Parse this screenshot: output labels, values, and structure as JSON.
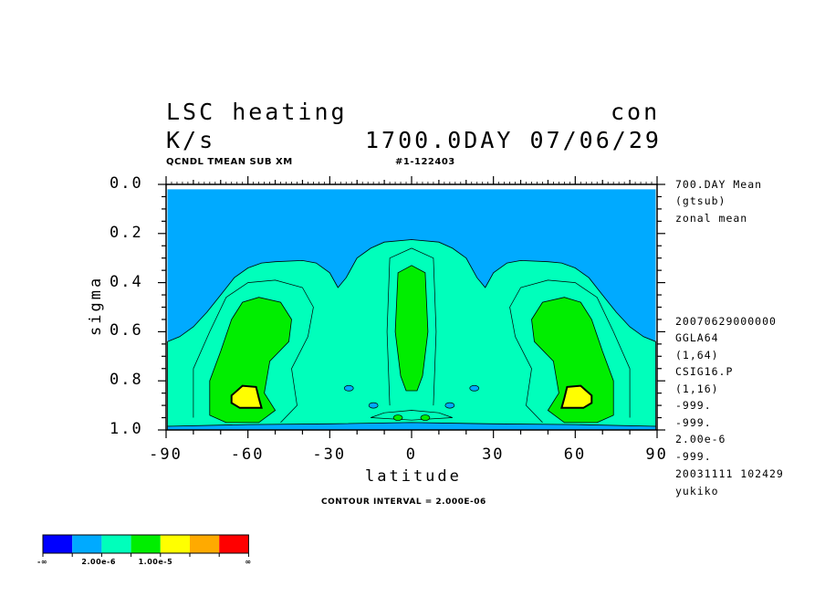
{
  "title": {
    "left_line1": "LSC heating",
    "right_line1": "con",
    "left_line2": "K/s",
    "right_line2": "1700.0DAY 07/06/29"
  },
  "header_small": {
    "left": "QCNDL TMEAN SUB XM",
    "right": "#1-122403"
  },
  "side_top": [
    "700.DAY Mean",
    "(gtsub)",
    "zonal mean"
  ],
  "side_bottom": [
    "20070629000000",
    "GGLA64",
    "(1,64)",
    "CSIG16.P",
    "(1,16)",
    "-999.",
    "-999.",
    "2.00e-6",
    "-999.",
    "20031111 102429",
    "yukiko"
  ],
  "footer": {
    "contour_interval": "CONTOUR INTERVAL = 2.000E-06"
  },
  "legend": {
    "colors": [
      "#0000ff",
      "#00aaff",
      "#00ffbb",
      "#00ee00",
      "#ffff00",
      "#ffaa00",
      "#ff0000"
    ],
    "labels": [
      "-∞",
      "2.00e-6",
      "1.00e-5",
      "∞"
    ]
  },
  "chart_data": {
    "type": "heatmap",
    "title": "LSC heating",
    "units": "K/s",
    "xlabel": "latitude",
    "ylabel": "sigma",
    "xlim": [
      -90,
      90
    ],
    "ylim": [
      1.0,
      0.0
    ],
    "x_ticks": [
      "-90",
      "-60",
      "-30",
      "0",
      "30",
      "60",
      "90"
    ],
    "y_ticks": [
      "0.0",
      "0.2",
      "0.4",
      "0.6",
      "0.8",
      "1.0"
    ],
    "contour_interval": 2e-06,
    "levels": [
      0,
      2e-06,
      4e-06,
      6e-06,
      8e-06,
      1e-05
    ],
    "regions": [
      {
        "name": "above 2.00e-6",
        "level": 2e-06,
        "fill": "#00ffbb",
        "boundary": [
          [
            -89.5,
            0.64
          ],
          [
            -85,
            0.62
          ],
          [
            -80,
            0.58
          ],
          [
            -75,
            0.52
          ],
          [
            -70,
            0.45
          ],
          [
            -65,
            0.38
          ],
          [
            -60,
            0.34
          ],
          [
            -55,
            0.32
          ],
          [
            -50,
            0.315
          ],
          [
            -40,
            0.31
          ],
          [
            -35,
            0.32
          ],
          [
            -30,
            0.36
          ],
          [
            -27,
            0.42
          ],
          [
            -24,
            0.38
          ],
          [
            -20,
            0.3
          ],
          [
            -15,
            0.26
          ],
          [
            -10,
            0.235
          ],
          [
            0,
            0.225
          ],
          [
            10,
            0.235
          ],
          [
            15,
            0.26
          ],
          [
            20,
            0.3
          ],
          [
            24,
            0.38
          ],
          [
            27,
            0.42
          ],
          [
            30,
            0.36
          ],
          [
            35,
            0.32
          ],
          [
            40,
            0.31
          ],
          [
            50,
            0.315
          ],
          [
            55,
            0.32
          ],
          [
            60,
            0.34
          ],
          [
            65,
            0.38
          ],
          [
            70,
            0.45
          ],
          [
            75,
            0.52
          ],
          [
            80,
            0.58
          ],
          [
            85,
            0.62
          ],
          [
            89.5,
            0.64
          ],
          [
            89.5,
            0.985
          ],
          [
            -89.5,
            0.985
          ]
        ]
      },
      {
        "name": "left core 1.00e-5",
        "level": 1e-05,
        "fill": "#00ee00",
        "boundary": [
          [
            -74,
            0.94
          ],
          [
            -74,
            0.8
          ],
          [
            -70,
            0.68
          ],
          [
            -66,
            0.55
          ],
          [
            -62,
            0.48
          ],
          [
            -56,
            0.46
          ],
          [
            -48,
            0.48
          ],
          [
            -44,
            0.55
          ],
          [
            -45,
            0.64
          ],
          [
            -52,
            0.72
          ],
          [
            -54,
            0.85
          ],
          [
            -50,
            0.92
          ],
          [
            -56,
            0.97
          ],
          [
            -68,
            0.97
          ]
        ]
      },
      {
        "name": "right core 1.00e-5",
        "level": 1e-05,
        "fill": "#00ee00",
        "boundary": [
          [
            74,
            0.94
          ],
          [
            74,
            0.8
          ],
          [
            70,
            0.68
          ],
          [
            66,
            0.55
          ],
          [
            62,
            0.48
          ],
          [
            56,
            0.46
          ],
          [
            48,
            0.48
          ],
          [
            44,
            0.55
          ],
          [
            45,
            0.64
          ],
          [
            52,
            0.72
          ],
          [
            54,
            0.85
          ],
          [
            50,
            0.92
          ],
          [
            56,
            0.97
          ],
          [
            68,
            0.97
          ]
        ]
      },
      {
        "name": "equatorial core 1.00e-5",
        "level": 1e-05,
        "fill": "#00ee00",
        "boundary": [
          [
            -5,
            0.36
          ],
          [
            0,
            0.33
          ],
          [
            5,
            0.36
          ],
          [
            6,
            0.6
          ],
          [
            4,
            0.78
          ],
          [
            2,
            0.84
          ],
          [
            -2,
            0.84
          ],
          [
            -4,
            0.78
          ],
          [
            -6,
            0.6
          ]
        ]
      },
      {
        "name": "left maximum",
        "level": "max",
        "fill": "#ffff00",
        "boundary": [
          [
            -66,
            0.86
          ],
          [
            -62,
            0.82
          ],
          [
            -57,
            0.825
          ],
          [
            -56,
            0.87
          ],
          [
            -55,
            0.91
          ],
          [
            -63,
            0.91
          ],
          [
            -66,
            0.89
          ]
        ]
      },
      {
        "name": "right maximum",
        "level": "max",
        "fill": "#ffff00",
        "boundary": [
          [
            66,
            0.86
          ],
          [
            62,
            0.82
          ],
          [
            57,
            0.825
          ],
          [
            56,
            0.87
          ],
          [
            55,
            0.91
          ],
          [
            63,
            0.91
          ],
          [
            66,
            0.89
          ]
        ]
      },
      {
        "name": "near-surface minimum",
        "level": 0,
        "fill": "#00aaff",
        "boundary": [
          [
            -89.5,
            0.985
          ],
          [
            -60,
            0.978
          ],
          [
            -30,
            0.975
          ],
          [
            0,
            0.97
          ],
          [
            30,
            0.975
          ],
          [
            60,
            0.978
          ],
          [
            89.5,
            0.985
          ],
          [
            89.5,
            1.0
          ],
          [
            -89.5,
            1.0
          ]
        ]
      }
    ]
  }
}
